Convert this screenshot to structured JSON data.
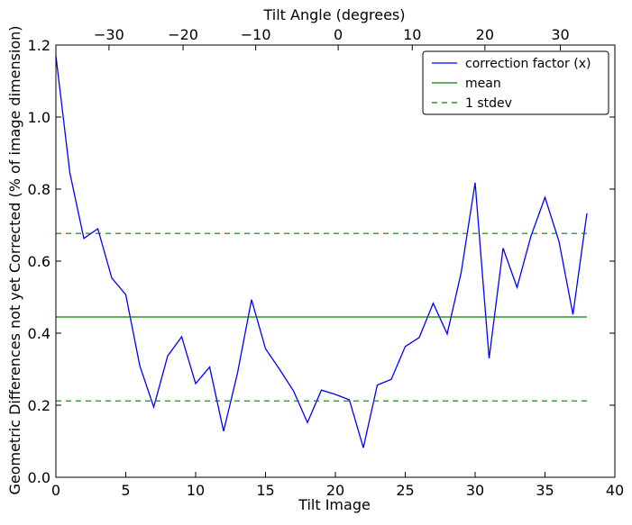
{
  "chart_data": {
    "type": "line",
    "xlabel": "Tilt Image",
    "ylabel": "Geometric Differences not yet Corrected (% of image dimension)",
    "top_xlabel": "Tilt Angle (degrees)",
    "xlim": [
      0,
      40
    ],
    "ylim": [
      0.0,
      1.2
    ],
    "x_ticks": [
      "0",
      "5",
      "10",
      "15",
      "20",
      "25",
      "30",
      "35",
      "40"
    ],
    "x_tick_values": [
      0,
      5,
      10,
      15,
      20,
      25,
      30,
      35,
      40
    ],
    "y_ticks": [
      "0.0",
      "0.2",
      "0.4",
      "0.6",
      "0.8",
      "1.0",
      "1.2"
    ],
    "y_tick_values": [
      0.0,
      0.2,
      0.4,
      0.6,
      0.8,
      1.0,
      1.2
    ],
    "top_x_ticks": [
      "−30",
      "−20",
      "−10",
      "0",
      "10",
      "20",
      "30"
    ],
    "top_x_tick_positions": [
      3.8,
      9.1,
      14.3,
      20.2,
      25.5,
      30.7,
      36.1
    ],
    "grid": false,
    "legend_position": "top-right",
    "series": [
      {
        "name": "correction factor (x)",
        "color": "#0000ff",
        "style": "solid",
        "x": [
          0,
          1,
          2,
          3,
          4,
          5,
          6,
          7,
          8,
          9,
          10,
          11,
          12,
          13,
          14,
          15,
          16,
          17,
          18,
          19,
          20,
          21,
          22,
          23,
          24,
          25,
          26,
          27,
          28,
          29,
          30,
          31,
          32,
          33,
          34,
          35,
          36,
          37,
          38
        ],
        "y": [
          1.17,
          0.845,
          0.663,
          0.69,
          0.553,
          0.507,
          0.31,
          0.195,
          0.337,
          0.39,
          0.26,
          0.306,
          0.128,
          0.29,
          0.493,
          0.357,
          0.3,
          0.24,
          0.152,
          0.242,
          0.23,
          0.215,
          0.082,
          0.256,
          0.272,
          0.363,
          0.388,
          0.483,
          0.398,
          0.568,
          0.818,
          0.33,
          0.636,
          0.527,
          0.67,
          0.777,
          0.655,
          0.452,
          0.733
        ]
      },
      {
        "name": "mean",
        "color": "#008000",
        "style": "solid",
        "x": [
          0,
          38
        ],
        "y": [
          0.445,
          0.445
        ]
      },
      {
        "name": "1 stdev",
        "color": "#008000",
        "style": "dashed",
        "x": [
          0,
          38
        ],
        "y": [
          0.677,
          0.677
        ]
      },
      {
        "name": "",
        "color": "#008000",
        "style": "dashed",
        "x": [
          0,
          38
        ],
        "y": [
          0.212,
          0.212
        ]
      }
    ],
    "legend": [
      {
        "label": "correction factor (x)",
        "color": "#0000ff",
        "style": "solid"
      },
      {
        "label": "mean",
        "color": "#008000",
        "style": "solid"
      },
      {
        "label": "1 stdev",
        "color": "#008000",
        "style": "dashed"
      }
    ]
  }
}
